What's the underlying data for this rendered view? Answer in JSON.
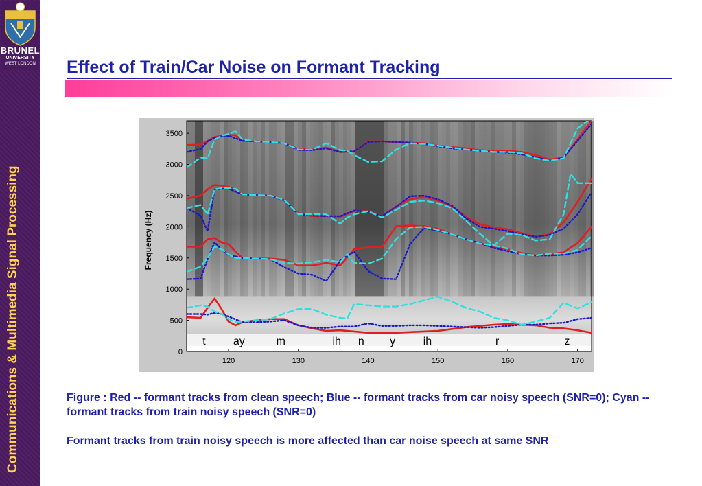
{
  "logo": {
    "name": "BRUNEL",
    "line1": "UNIVERSITY",
    "line2": "WEST LONDON"
  },
  "sidebar": {
    "vertical_title": "Communications & Multimedia Signal Processing"
  },
  "slide": {
    "title": "Effect of Train/Car Noise on Formant Tracking",
    "caption_1": "Figure : Red -- formant tracks from clean speech; Blue -- formant tracks from car noisy speech (SNR=0); Cyan --  formant tracks from train noisy speech (SNR=0)",
    "caption_2": "Formant tracks from train noisy speech is more affected than car noise speech at same SNR"
  },
  "colors": {
    "title": "#1f22a8",
    "sidebar": "#4a1a5e",
    "sidebar_text": "#ffd34d",
    "clean": "#e02020",
    "car": "#1a1acc",
    "train": "#2ee0e0"
  },
  "chart_data": {
    "type": "line",
    "background": "spectrogram",
    "title": "",
    "xlabel": "",
    "ylabel": "Frequency (Hz)",
    "xlim": [
      114,
      172
    ],
    "ylim": [
      0,
      3700
    ],
    "x_ticks": [
      120,
      130,
      140,
      150,
      160,
      170
    ],
    "y_ticks": [
      0,
      500,
      1000,
      1500,
      2000,
      2500,
      3000,
      3500
    ],
    "phonemes": [
      {
        "label": "t",
        "x": 116.5
      },
      {
        "label": "ay",
        "x": 121.5
      },
      {
        "label": "m",
        "x": 127.5
      },
      {
        "label": "ih",
        "x": 135.5
      },
      {
        "label": "n",
        "x": 139
      },
      {
        "label": "y",
        "x": 143.5
      },
      {
        "label": "ih",
        "x": 148.5
      },
      {
        "label": "r",
        "x": 158.5
      },
      {
        "label": "z",
        "x": 168.5
      }
    ],
    "series": [
      {
        "name": "Red -- formant tracks from clean speech",
        "color": "#e02020",
        "style": "solid",
        "tracks": [
          {
            "x": [
              114,
              116,
              117,
              118,
              119,
              120,
              121,
              122,
              124,
              126,
              128,
              130,
              132,
              134,
              136,
              138,
              140,
              142,
              144,
              146,
              148,
              150,
              152,
              154,
              156,
              158,
              160,
              162,
              164,
              166,
              168,
              170,
              172
            ],
            "y": [
              3310,
              3320,
              3380,
              3440,
              3460,
              3470,
              3470,
              3380,
              3370,
              3360,
              3340,
              3250,
              3240,
              3270,
              3200,
              3210,
              3370,
              3370,
              3360,
              3350,
              3340,
              3300,
              3280,
              3260,
              3230,
              3210,
              3220,
              3200,
              3150,
              3080,
              3110,
              3400,
              3700
            ]
          },
          {
            "x": [
              114,
              116,
              117,
              118,
              119,
              120,
              121,
              122,
              124,
              126,
              128,
              130,
              132,
              134,
              136,
              138,
              140,
              142,
              144,
              146,
              148,
              150,
              152,
              154,
              156,
              158,
              160,
              162,
              164,
              166,
              168,
              170,
              172
            ],
            "y": [
              2450,
              2500,
              2600,
              2670,
              2660,
              2640,
              2600,
              2520,
              2510,
              2500,
              2430,
              2220,
              2170,
              2170,
              2160,
              2250,
              2250,
              2170,
              2330,
              2440,
              2480,
              2420,
              2330,
              2160,
              2040,
              1990,
              1960,
              1900,
              1840,
              1880,
              2070,
              2400,
              2770
            ]
          },
          {
            "x": [
              114,
              116,
              117,
              118,
              119,
              120,
              121,
              122,
              124,
              126,
              128,
              130,
              132,
              134,
              136,
              138,
              140,
              142,
              144,
              146,
              148,
              150,
              152,
              154,
              156,
              158,
              160,
              162,
              164,
              166,
              168,
              170,
              172
            ],
            "y": [
              1680,
              1680,
              1800,
              1820,
              1750,
              1720,
              1600,
              1500,
              1490,
              1490,
              1470,
              1380,
              1380,
              1420,
              1380,
              1640,
              1670,
              1680,
              2010,
              2020,
              2010,
              1970,
              1880,
              1800,
              1730,
              1680,
              1640,
              1580,
              1540,
              1560,
              1590,
              1740,
              2000
            ]
          },
          {
            "x": [
              114,
              116,
              117,
              118,
              119,
              120,
              121,
              122,
              124,
              126,
              128,
              130,
              132,
              134,
              136,
              138,
              140,
              142,
              144,
              146,
              148,
              150,
              152,
              154,
              156,
              158,
              160,
              162,
              164,
              166,
              168,
              170,
              172
            ],
            "y": [
              550,
              540,
              700,
              850,
              680,
              480,
              420,
              470,
              500,
              520,
              520,
              420,
              370,
              330,
              340,
              320,
              300,
              300,
              300,
              310,
              320,
              330,
              360,
              390,
              410,
              430,
              440,
              430,
              420,
              380,
              370,
              340,
              300
            ]
          }
        ]
      },
      {
        "name": "Blue -- formant tracks from car noisy speech (SNR=0)",
        "color": "#1a1acc",
        "style": "dotted",
        "tracks": [
          {
            "x": [
              114,
              116,
              117,
              118,
              119,
              120,
              122,
              124,
              126,
              128,
              130,
              132,
              134,
              136,
              138,
              140,
              142,
              144,
              146,
              148,
              150,
              152,
              154,
              156,
              158,
              160,
              162,
              164,
              166,
              168,
              170,
              172
            ],
            "y": [
              3200,
              3250,
              3370,
              3430,
              3450,
              3460,
              3380,
              3370,
              3360,
              3340,
              3230,
              3230,
              3260,
              3200,
              3210,
              3360,
              3370,
              3360,
              3350,
              3330,
              3290,
              3260,
              3240,
              3220,
              3200,
              3190,
              3160,
              3120,
              3060,
              3110,
              3380,
              3650
            ]
          },
          {
            "x": [
              114,
              116,
              117,
              118,
              119,
              120,
              122,
              124,
              126,
              128,
              130,
              132,
              134,
              136,
              138,
              140,
              142,
              144,
              146,
              148,
              150,
              152,
              154,
              156,
              158,
              160,
              162,
              164,
              166,
              168,
              170,
              172
            ],
            "y": [
              2300,
              2180,
              1930,
              2600,
              2610,
              2610,
              2520,
              2510,
              2500,
              2420,
              2200,
              2180,
              2170,
              2170,
              2260,
              2240,
              2170,
              2320,
              2490,
              2500,
              2440,
              2340,
              2140,
              2000,
              1970,
              1930,
              1880,
              1840,
              1870,
              1970,
              2200,
              2550
            ]
          },
          {
            "x": [
              114,
              116,
              117,
              118,
              119,
              120,
              122,
              124,
              126,
              128,
              130,
              132,
              134,
              136,
              138,
              140,
              142,
              144,
              146,
              148,
              150,
              152,
              154,
              156,
              158,
              160,
              162,
              164,
              166,
              168,
              170,
              172
            ],
            "y": [
              1160,
              1170,
              1480,
              1750,
              1640,
              1550,
              1500,
              1490,
              1480,
              1350,
              1250,
              1230,
              1130,
              1460,
              1600,
              1290,
              1170,
              1160,
              1720,
              1980,
              1940,
              1880,
              1800,
              1740,
              1660,
              1610,
              1560,
              1540,
              1540,
              1550,
              1590,
              1660
            ]
          },
          {
            "x": [
              114,
              116,
              117,
              118,
              119,
              120,
              122,
              124,
              126,
              128,
              130,
              132,
              134,
              136,
              138,
              140,
              142,
              144,
              146,
              148,
              150,
              152,
              154,
              156,
              158,
              160,
              162,
              164,
              166,
              168,
              170,
              172
            ],
            "y": [
              600,
              600,
              590,
              620,
              600,
              560,
              470,
              470,
              480,
              500,
              420,
              380,
              380,
              400,
              400,
              450,
              410,
              410,
              420,
              420,
              410,
              400,
              390,
              380,
              390,
              410,
              430,
              430,
              450,
              460,
              520,
              540
            ]
          }
        ]
      },
      {
        "name": "Cyan -- formant tracks from train noisy speech (SNR=0)",
        "color": "#2ee0e0",
        "style": "dashed",
        "tracks": [
          {
            "x": [
              114,
              116,
              117,
              118,
              119,
              120,
              121,
              122,
              124,
              126,
              128,
              130,
              132,
              134,
              136,
              137,
              138,
              140,
              142,
              144,
              146,
              148,
              150,
              152,
              154,
              156,
              158,
              160,
              162,
              164,
              166,
              168,
              170,
              172
            ],
            "y": [
              2950,
              3110,
              3100,
              3400,
              3460,
              3490,
              3530,
              3400,
              3370,
              3360,
              3340,
              3240,
              3240,
              3340,
              3230,
              3220,
              3150,
              3040,
              3050,
              3240,
              3340,
              3330,
              3300,
              3270,
              3240,
              3220,
              3200,
              3200,
              3180,
              3100,
              3060,
              3100,
              3580,
              3750
            ]
          },
          {
            "x": [
              114,
              116,
              117,
              118,
              119,
              120,
              121,
              122,
              124,
              126,
              128,
              130,
              132,
              134,
              136,
              137,
              138,
              140,
              142,
              144,
              146,
              148,
              150,
              152,
              154,
              156,
              158,
              160,
              162,
              164,
              166,
              168,
              169,
              170,
              172
            ],
            "y": [
              2300,
              2350,
              2200,
              2600,
              2620,
              2620,
              2610,
              2520,
              2510,
              2500,
              2430,
              2200,
              2200,
              2200,
              2050,
              2150,
              2200,
              2250,
              2150,
              2270,
              2400,
              2420,
              2380,
              2300,
              2100,
              1890,
              1700,
              1890,
              1870,
              1780,
              1800,
              2200,
              2850,
              2700,
              2700
            ]
          },
          {
            "x": [
              114,
              116,
              117,
              118,
              119,
              120,
              121,
              122,
              124,
              126,
              128,
              130,
              132,
              134,
              136,
              137,
              138,
              140,
              142,
              144,
              146,
              148,
              150,
              152,
              154,
              156,
              158,
              160,
              162,
              164,
              166,
              168,
              170,
              172
            ],
            "y": [
              1280,
              1360,
              1500,
              1680,
              1640,
              1560,
              1500,
              1500,
              1490,
              1480,
              1420,
              1410,
              1430,
              1470,
              1430,
              1560,
              1420,
              1410,
              1490,
              1800,
              1990,
              2000,
              1950,
              1880,
              1800,
              1730,
              1700,
              1650,
              1560,
              1540,
              1570,
              1570,
              1630,
              1850
            ]
          },
          {
            "x": [
              114,
              116,
              117,
              118,
              119,
              120,
              121,
              122,
              124,
              126,
              128,
              130,
              132,
              134,
              136,
              137,
              138,
              140,
              142,
              144,
              146,
              148,
              150,
              152,
              154,
              156,
              158,
              160,
              162,
              164,
              166,
              168,
              170,
              172
            ],
            "y": [
              700,
              740,
              720,
              640,
              600,
              520,
              470,
              480,
              500,
              520,
              610,
              680,
              680,
              590,
              540,
              530,
              760,
              740,
              720,
              720,
              760,
              820,
              880,
              800,
              700,
              640,
              540,
              500,
              430,
              480,
              540,
              780,
              690,
              790
            ]
          }
        ]
      }
    ]
  }
}
